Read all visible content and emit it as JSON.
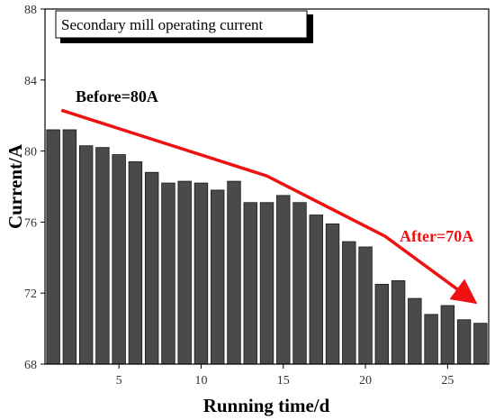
{
  "chart_data": {
    "type": "bar",
    "title": "",
    "legend": {
      "label": "Secondary mill operating current",
      "placement": "top-left"
    },
    "xlabel": "Running time/d",
    "ylabel": "Current/A",
    "xlim": [
      0.5,
      27.5
    ],
    "ylim": [
      68,
      88
    ],
    "xticks": [
      5,
      10,
      15,
      20,
      25
    ],
    "yticks": [
      68,
      72,
      76,
      80,
      84,
      88
    ],
    "x": [
      1,
      2,
      3,
      4,
      5,
      6,
      7,
      8,
      9,
      10,
      11,
      12,
      13,
      14,
      15,
      16,
      17,
      18,
      19,
      20,
      21,
      22,
      23,
      24,
      25,
      26,
      27
    ],
    "values": [
      81.2,
      81.2,
      80.3,
      80.2,
      79.8,
      79.4,
      78.8,
      78.2,
      78.3,
      78.2,
      77.8,
      78.3,
      77.1,
      77.1,
      77.5,
      77.1,
      76.4,
      75.9,
      74.9,
      74.6,
      72.5,
      72.7,
      71.7,
      70.8,
      71.3,
      70.5,
      70.3
    ],
    "bar_color": "#4a4a4a",
    "trend_line": {
      "color": "#ee1111",
      "points": [
        [
          1.5,
          82.3
        ],
        [
          14,
          78.6
        ],
        [
          21.2,
          75.2
        ],
        [
          26.5,
          71.6
        ]
      ]
    },
    "annotations": {
      "before": "Before=80A",
      "after": "After=70A"
    }
  }
}
